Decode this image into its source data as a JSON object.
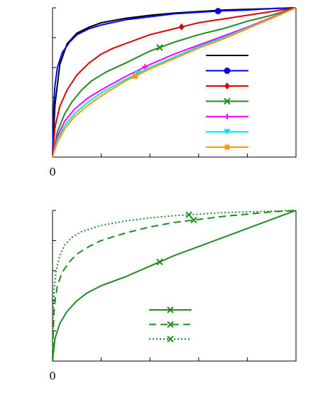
{
  "chart_data": [
    {
      "type": "line",
      "title": "",
      "xlabel": "",
      "ylabel": "",
      "xlim": [
        0,
        1
      ],
      "ylim": [
        0,
        1
      ],
      "x_ticks": [
        0,
        0.2,
        0.4,
        0.6,
        0.8,
        1.0
      ],
      "x_tick_labels": [
        "0",
        "",
        "",
        "",
        "",
        ""
      ],
      "y_ticks": [
        0,
        0.2,
        0.4,
        0.6,
        0.8,
        1.0
      ],
      "y_tick_labels": [
        "",
        "",
        "",
        "",
        "",
        ""
      ],
      "grid": false,
      "legend_position": "center-right",
      "series": [
        {
          "color": "#000000",
          "line_style": "solid",
          "marker": "none",
          "x": [
            0,
            0.01,
            0.03,
            0.06,
            0.1,
            0.15,
            0.2,
            0.3,
            0.4,
            0.5,
            0.6,
            0.7,
            0.8,
            0.9,
            1.0
          ],
          "y": [
            0,
            0.35,
            0.62,
            0.76,
            0.83,
            0.87,
            0.9,
            0.93,
            0.95,
            0.965,
            0.975,
            0.985,
            0.99,
            0.995,
            1.0
          ],
          "marker_x": []
        },
        {
          "color": "#0000ee",
          "line_style": "solid",
          "marker": "circle",
          "x": [
            0,
            0.005,
            0.01,
            0.02,
            0.04,
            0.07,
            0.1,
            0.15,
            0.2,
            0.3,
            0.4,
            0.5,
            0.6,
            0.7,
            0.8,
            0.9,
            1.0
          ],
          "y": [
            0,
            0.35,
            0.48,
            0.6,
            0.7,
            0.77,
            0.82,
            0.86,
            0.885,
            0.92,
            0.94,
            0.96,
            0.97,
            0.98,
            0.985,
            0.995,
            1.0
          ],
          "marker_x": [
            0.68
          ]
        },
        {
          "color": "#dd0000",
          "line_style": "solid",
          "marker": "diamond",
          "x": [
            0,
            0.01,
            0.03,
            0.06,
            0.1,
            0.15,
            0.2,
            0.25,
            0.3,
            0.35,
            0.4,
            0.5,
            0.55,
            0.6,
            0.7,
            0.8,
            0.9,
            1.0
          ],
          "y": [
            0,
            0.2,
            0.34,
            0.45,
            0.55,
            0.63,
            0.69,
            0.73,
            0.76,
            0.79,
            0.82,
            0.86,
            0.88,
            0.9,
            0.925,
            0.95,
            0.975,
            1.0
          ],
          "marker_x": [
            0.53
          ]
        },
        {
          "color": "#228B22",
          "line_style": "solid",
          "marker": "x",
          "x": [
            0,
            0.02,
            0.05,
            0.08,
            0.12,
            0.16,
            0.22,
            0.3,
            0.4,
            0.5,
            0.6,
            0.7,
            0.8,
            0.9,
            1.0
          ],
          "y": [
            0,
            0.17,
            0.29,
            0.37,
            0.45,
            0.51,
            0.57,
            0.63,
            0.71,
            0.77,
            0.82,
            0.86,
            0.91,
            0.95,
            1.0
          ],
          "marker_x": [
            0.44
          ]
        },
        {
          "color": "#ff00ff",
          "line_style": "solid",
          "marker": "plus",
          "x": [
            0,
            0.02,
            0.05,
            0.09,
            0.14,
            0.2,
            0.3,
            0.4,
            0.5,
            0.6,
            0.7,
            0.8,
            0.9,
            1.0
          ],
          "y": [
            0,
            0.14,
            0.24,
            0.32,
            0.39,
            0.45,
            0.54,
            0.62,
            0.69,
            0.75,
            0.81,
            0.87,
            0.935,
            1.0
          ],
          "marker_x": [
            0.38
          ]
        },
        {
          "color": "#00e5e5",
          "line_style": "solid",
          "marker": "triangle-down",
          "x": [
            0,
            0.02,
            0.05,
            0.09,
            0.14,
            0.2,
            0.3,
            0.4,
            0.5,
            0.6,
            0.7,
            0.8,
            0.9,
            1.0
          ],
          "y": [
            0,
            0.12,
            0.21,
            0.29,
            0.36,
            0.43,
            0.52,
            0.6,
            0.67,
            0.74,
            0.8,
            0.865,
            0.93,
            1.0
          ],
          "marker_x": [
            0.35
          ]
        },
        {
          "color": "#ff9900",
          "line_style": "solid",
          "marker": "square",
          "x": [
            0,
            0.02,
            0.05,
            0.09,
            0.14,
            0.2,
            0.3,
            0.4,
            0.5,
            0.6,
            0.7,
            0.8,
            0.9,
            1.0
          ],
          "y": [
            0,
            0.1,
            0.19,
            0.27,
            0.34,
            0.41,
            0.51,
            0.59,
            0.66,
            0.73,
            0.79,
            0.86,
            0.93,
            1.0
          ],
          "marker_x": [
            0.34
          ]
        }
      ]
    },
    {
      "type": "line",
      "title": "",
      "xlabel": "",
      "ylabel": "",
      "xlim": [
        0,
        1
      ],
      "ylim": [
        0,
        1
      ],
      "x_ticks": [
        0,
        0.2,
        0.4,
        0.6,
        0.8,
        1.0
      ],
      "x_tick_labels": [
        "0",
        "",
        "",
        "",
        "",
        ""
      ],
      "y_ticks": [
        0,
        0.2,
        0.4,
        0.6,
        0.8,
        1.0
      ],
      "y_tick_labels": [
        "",
        "",
        "",
        "",
        "",
        ""
      ],
      "grid": false,
      "legend_position": "lower-center",
      "series": [
        {
          "color": "#228B22",
          "line_style": "solid",
          "marker": "x",
          "x": [
            0,
            0.01,
            0.03,
            0.06,
            0.1,
            0.14,
            0.2,
            0.3,
            0.4,
            0.5,
            0.6,
            0.7,
            0.8,
            0.9,
            1.0
          ],
          "y": [
            0,
            0.15,
            0.25,
            0.33,
            0.4,
            0.45,
            0.5,
            0.56,
            0.63,
            0.7,
            0.76,
            0.82,
            0.88,
            0.94,
            1.0
          ],
          "marker_x": [
            0.44
          ]
        },
        {
          "color": "#228B22",
          "line_style": "dashed",
          "marker": "x",
          "x": [
            0,
            0.005,
            0.01,
            0.02,
            0.04,
            0.07,
            0.1,
            0.15,
            0.2,
            0.3,
            0.4,
            0.5,
            0.6,
            0.7,
            0.8,
            0.9,
            1.0
          ],
          "y": [
            0,
            0.3,
            0.4,
            0.5,
            0.59,
            0.66,
            0.71,
            0.76,
            0.8,
            0.85,
            0.89,
            0.92,
            0.94,
            0.96,
            0.975,
            0.99,
            1.0
          ],
          "marker_x": [
            0.58
          ]
        },
        {
          "color": "#228B22",
          "line_style": "dotted",
          "marker": "x",
          "x": [
            0,
            0.003,
            0.007,
            0.015,
            0.03,
            0.05,
            0.08,
            0.12,
            0.2,
            0.3,
            0.4,
            0.5,
            0.6,
            0.7,
            0.8,
            0.9,
            1.0
          ],
          "y": [
            0,
            0.35,
            0.48,
            0.6,
            0.7,
            0.77,
            0.82,
            0.86,
            0.9,
            0.93,
            0.95,
            0.965,
            0.975,
            0.985,
            0.99,
            0.995,
            1.0
          ],
          "marker_x": [
            0.56
          ]
        }
      ]
    }
  ]
}
